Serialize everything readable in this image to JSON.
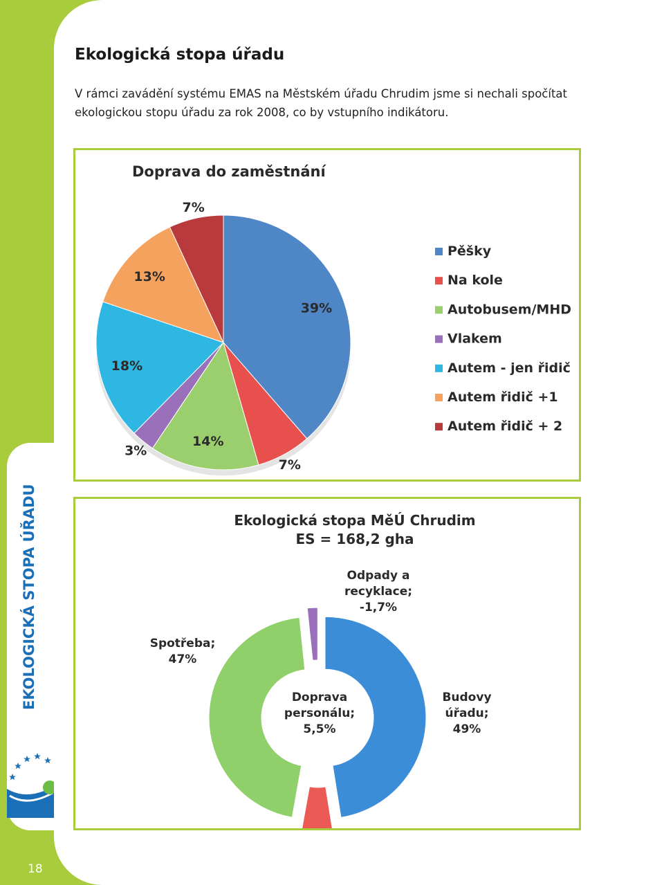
{
  "page": {
    "title": "Ekologická stopa úřadu",
    "intro": "V rámci zavádění systému EMAS na Městském úřadu Chrudim jsme si nechali spočítat ekologickou stopu úřadu za rok 2008, co by vstupního indikátoru.",
    "side_label": "EKOLOGICKÁ STOPA ÚŘADU",
    "page_number": "18",
    "logo_icon": "emas-logo-icon"
  },
  "chart_data": [
    {
      "type": "pie",
      "title": "Doprava do zaměstnání",
      "categories": [
        "Pěšky",
        "Na kole",
        "Autobusem/MHD",
        "Vlakem",
        "Autem - jen řidič",
        "Autem řidič +1",
        "Autem řidič + 2"
      ],
      "values": [
        39,
        7,
        14,
        3,
        18,
        13,
        7
      ],
      "labels": [
        "39%",
        "7%",
        "14%",
        "3%",
        "18%",
        "13%",
        "7%"
      ],
      "colors": [
        "#4f86c6",
        "#e8504d",
        "#9bcf6e",
        "#9a70bb",
        "#2eb7e3",
        "#f5a25e",
        "#b93a3d"
      ],
      "legend_placement": "right"
    },
    {
      "type": "pie",
      "title": "Ekologická stopa MěÚ Chrudim",
      "subtitle": "ES = 168,2 gha",
      "categories": [
        "Budovy úřadu",
        "Doprava personálu",
        "Spotřeba",
        "Odpady a recyklace"
      ],
      "values": [
        49,
        5.5,
        47,
        -1.7
      ],
      "label_lines": [
        [
          "Budovy",
          "úřadu;",
          "49%"
        ],
        [
          "Doprava",
          "personálu;",
          "5,5%"
        ],
        [
          "Spotřeba;",
          "47%"
        ],
        [
          "Odpady a",
          "recyklace;",
          "-1,7%"
        ]
      ],
      "colors": [
        "#3c8dd8",
        "#ec5a55",
        "#8fd06b",
        "#9a70bb"
      ]
    }
  ]
}
